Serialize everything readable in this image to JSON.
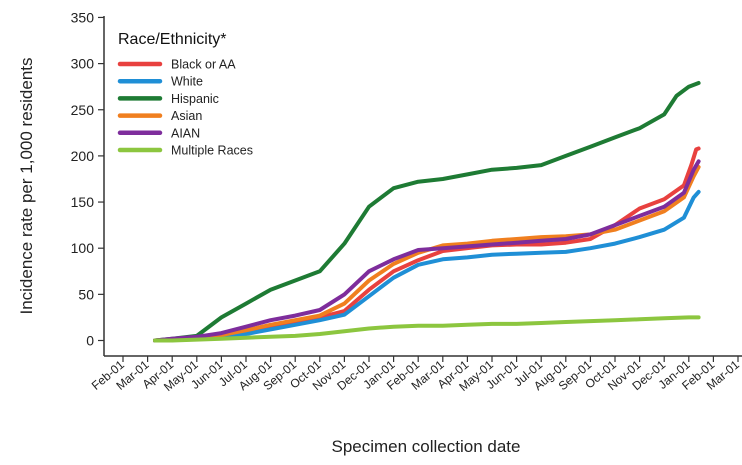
{
  "chart_data": {
    "type": "line",
    "title": "",
    "xlabel": "Specimen collection date",
    "ylabel": "Incidence rate per 1,000 residents",
    "ylim": [
      0,
      350
    ],
    "yticks": [
      0,
      50,
      100,
      150,
      200,
      250,
      300,
      350
    ],
    "x_tick_labels": [
      "Feb-01",
      "Mar-01",
      "Apr-01",
      "May-01",
      "Jun-01",
      "Jul-01",
      "Aug-01",
      "Sep-01",
      "Oct-01",
      "Nov-01",
      "Dec-01",
      "Jan-01",
      "Feb-01",
      "Mar-01",
      "Apr-01",
      "May-01",
      "Jun-01",
      "Jul-01",
      "Aug-01",
      "Sep-01",
      "Oct-01",
      "Nov-01",
      "Dec-01",
      "Jan-01",
      "Feb-01",
      "Mar-01"
    ],
    "grid": false,
    "legend": {
      "title": "Race/Ethnicity*",
      "position": "top-left"
    },
    "series": [
      {
        "name": "Black or AA",
        "color": "#e8413f",
        "points": [
          [
            1.3,
            0
          ],
          [
            2,
            1
          ],
          [
            3,
            3
          ],
          [
            4,
            6
          ],
          [
            5,
            10
          ],
          [
            6,
            15
          ],
          [
            7,
            20
          ],
          [
            8,
            25
          ],
          [
            9,
            32
          ],
          [
            10,
            55
          ],
          [
            11,
            75
          ],
          [
            12,
            87
          ],
          [
            13,
            97
          ],
          [
            14,
            100
          ],
          [
            15,
            103
          ],
          [
            16,
            104
          ],
          [
            17,
            104
          ],
          [
            18,
            106
          ],
          [
            19,
            110
          ],
          [
            20,
            125
          ],
          [
            21,
            143
          ],
          [
            22,
            153
          ],
          [
            22.8,
            168
          ],
          [
            23.1,
            190
          ],
          [
            23.3,
            207
          ],
          [
            23.4,
            208
          ]
        ]
      },
      {
        "name": "White",
        "color": "#1f8fd6",
        "points": [
          [
            1.3,
            0
          ],
          [
            2,
            1
          ],
          [
            3,
            2
          ],
          [
            4,
            4
          ],
          [
            5,
            7
          ],
          [
            6,
            12
          ],
          [
            7,
            17
          ],
          [
            8,
            22
          ],
          [
            9,
            28
          ],
          [
            10,
            48
          ],
          [
            11,
            68
          ],
          [
            12,
            82
          ],
          [
            13,
            88
          ],
          [
            14,
            90
          ],
          [
            15,
            93
          ],
          [
            16,
            94
          ],
          [
            17,
            95
          ],
          [
            18,
            96
          ],
          [
            19,
            100
          ],
          [
            20,
            105
          ],
          [
            21,
            112
          ],
          [
            22,
            120
          ],
          [
            22.8,
            133
          ],
          [
            23.2,
            155
          ],
          [
            23.4,
            161
          ]
        ]
      },
      {
        "name": "Hispanic",
        "color": "#1e7b34",
        "points": [
          [
            1.3,
            0
          ],
          [
            2,
            2
          ],
          [
            3,
            5
          ],
          [
            4,
            25
          ],
          [
            5,
            40
          ],
          [
            6,
            55
          ],
          [
            7,
            65
          ],
          [
            8,
            75
          ],
          [
            9,
            105
          ],
          [
            10,
            145
          ],
          [
            11,
            165
          ],
          [
            12,
            172
          ],
          [
            13,
            175
          ],
          [
            14,
            180
          ],
          [
            15,
            185
          ],
          [
            16,
            187
          ],
          [
            17,
            190
          ],
          [
            18,
            200
          ],
          [
            19,
            210
          ],
          [
            20,
            220
          ],
          [
            21,
            230
          ],
          [
            22,
            245
          ],
          [
            22.5,
            265
          ],
          [
            23,
            275
          ],
          [
            23.4,
            279
          ]
        ]
      },
      {
        "name": "Asian",
        "color": "#f07f1f",
        "points": [
          [
            1.3,
            0
          ],
          [
            2,
            1
          ],
          [
            3,
            3
          ],
          [
            4,
            6
          ],
          [
            5,
            11
          ],
          [
            6,
            17
          ],
          [
            7,
            22
          ],
          [
            8,
            27
          ],
          [
            9,
            40
          ],
          [
            10,
            65
          ],
          [
            11,
            83
          ],
          [
            12,
            95
          ],
          [
            13,
            103
          ],
          [
            14,
            105
          ],
          [
            15,
            108
          ],
          [
            16,
            110
          ],
          [
            17,
            112
          ],
          [
            18,
            113
          ],
          [
            19,
            115
          ],
          [
            20,
            120
          ],
          [
            21,
            130
          ],
          [
            22,
            140
          ],
          [
            22.8,
            155
          ],
          [
            23.2,
            178
          ],
          [
            23.4,
            188
          ]
        ]
      },
      {
        "name": "AIAN",
        "color": "#7e2d9c",
        "points": [
          [
            1.3,
            0
          ],
          [
            2,
            2
          ],
          [
            3,
            4
          ],
          [
            4,
            8
          ],
          [
            5,
            15
          ],
          [
            6,
            22
          ],
          [
            7,
            27
          ],
          [
            8,
            33
          ],
          [
            9,
            50
          ],
          [
            10,
            75
          ],
          [
            11,
            88
          ],
          [
            12,
            98
          ],
          [
            13,
            100
          ],
          [
            14,
            102
          ],
          [
            15,
            104
          ],
          [
            16,
            106
          ],
          [
            17,
            108
          ],
          [
            18,
            110
          ],
          [
            19,
            115
          ],
          [
            20,
            125
          ],
          [
            21,
            135
          ],
          [
            22,
            145
          ],
          [
            22.8,
            160
          ],
          [
            23.2,
            185
          ],
          [
            23.4,
            194
          ]
        ]
      },
      {
        "name": "Multiple Races",
        "color": "#8cc63f",
        "points": [
          [
            1.3,
            0
          ],
          [
            2,
            0
          ],
          [
            3,
            1
          ],
          [
            4,
            2
          ],
          [
            5,
            3
          ],
          [
            6,
            4
          ],
          [
            7,
            5
          ],
          [
            8,
            7
          ],
          [
            9,
            10
          ],
          [
            10,
            13
          ],
          [
            11,
            15
          ],
          [
            12,
            16
          ],
          [
            13,
            16
          ],
          [
            14,
            17
          ],
          [
            15,
            18
          ],
          [
            16,
            18
          ],
          [
            17,
            19
          ],
          [
            18,
            20
          ],
          [
            19,
            21
          ],
          [
            20,
            22
          ],
          [
            21,
            23
          ],
          [
            22,
            24
          ],
          [
            23,
            25
          ],
          [
            23.4,
            25
          ]
        ]
      }
    ]
  }
}
